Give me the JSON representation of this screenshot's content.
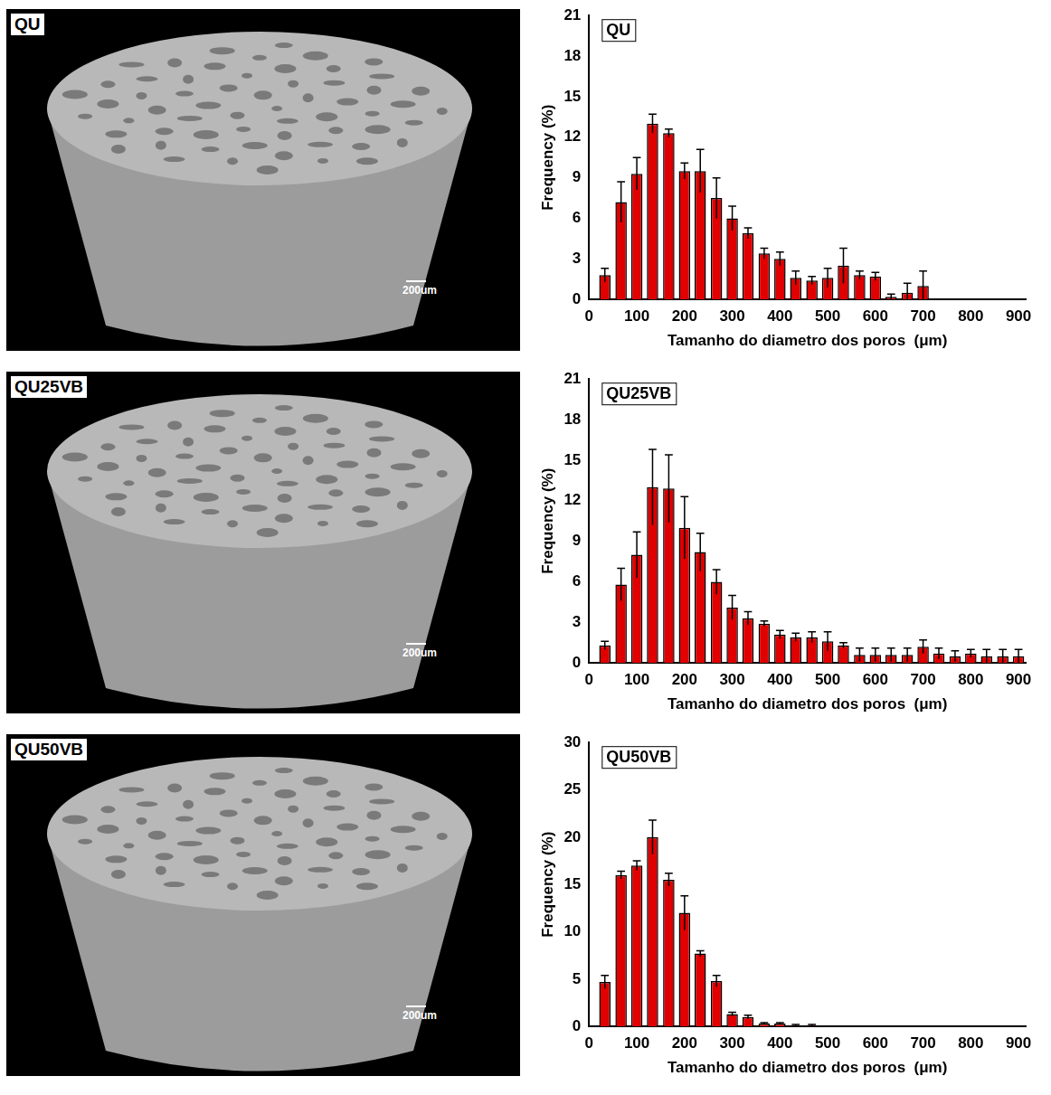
{
  "images": [
    {
      "label": "QU",
      "scale_bar": "200um"
    },
    {
      "label": "QU25VB",
      "scale_bar": "200um"
    },
    {
      "label": "QU50VB",
      "scale_bar": "200um"
    }
  ],
  "chart_data": [
    {
      "type": "bar",
      "title": "QU",
      "x_label": "Tamanho do diametro dos poros  (μm)",
      "y_label": "Frequency (%)",
      "x": [
        33,
        67,
        100,
        133,
        167,
        200,
        233,
        267,
        300,
        333,
        367,
        400,
        433,
        467,
        500,
        533,
        567,
        600,
        633,
        667,
        700
      ],
      "values": [
        1.8,
        7.2,
        9.3,
        13.0,
        12.3,
        9.5,
        9.5,
        7.5,
        6.0,
        4.9,
        3.4,
        3.0,
        1.6,
        1.4,
        1.6,
        2.5,
        1.8,
        1.7,
        0.2,
        0.5,
        1.0
      ],
      "errors": [
        0.5,
        1.5,
        1.2,
        0.7,
        0.3,
        0.6,
        1.6,
        1.5,
        0.9,
        0.4,
        0.4,
        0.5,
        0.5,
        0.3,
        0.7,
        1.3,
        0.3,
        0.3,
        0.2,
        0.7,
        1.1
      ],
      "color": "#e00000",
      "xlim": [
        0,
        915
      ],
      "xticks": [
        0,
        100,
        200,
        300,
        400,
        500,
        600,
        700,
        800,
        900
      ],
      "ylim": [
        0,
        21
      ],
      "yticks": [
        0,
        3,
        6,
        9,
        12,
        15,
        18,
        21
      ],
      "grid": false
    },
    {
      "type": "bar",
      "title": "QU25VB",
      "x_label": "Tamanho do diametro dos poros  (μm)",
      "y_label": "Frequency (%)",
      "x": [
        33,
        67,
        100,
        133,
        167,
        200,
        233,
        267,
        300,
        333,
        367,
        400,
        433,
        467,
        500,
        533,
        567,
        600,
        633,
        667,
        700,
        733,
        767,
        800,
        833,
        867,
        900
      ],
      "values": [
        1.3,
        5.8,
        8.0,
        13.0,
        12.9,
        10.0,
        8.2,
        6.0,
        4.1,
        3.3,
        2.9,
        2.1,
        1.9,
        1.9,
        1.6,
        1.3,
        0.6,
        0.6,
        0.6,
        0.6,
        1.2,
        0.7,
        0.5,
        0.7,
        0.5,
        0.5,
        0.5
      ],
      "errors": [
        0.3,
        1.2,
        1.7,
        2.8,
        2.5,
        2.3,
        1.4,
        0.9,
        0.9,
        0.5,
        0.2,
        0.3,
        0.3,
        0.4,
        0.7,
        0.2,
        0.5,
        0.5,
        0.5,
        0.5,
        0.5,
        0.4,
        0.4,
        0.3,
        0.5,
        0.5,
        0.5
      ],
      "color": "#e00000",
      "xlim": [
        0,
        915
      ],
      "xticks": [
        0,
        100,
        200,
        300,
        400,
        500,
        600,
        700,
        800,
        900
      ],
      "ylim": [
        0,
        21
      ],
      "yticks": [
        0,
        3,
        6,
        9,
        12,
        15,
        18,
        21
      ],
      "grid": false
    },
    {
      "type": "bar",
      "title": "QU50VB",
      "x_label": "Tamanho do diametro dos poros  (μm)",
      "y_label": "Frequency (%)",
      "x": [
        33,
        67,
        100,
        133,
        167,
        200,
        233,
        267,
        300,
        333,
        367,
        400,
        433,
        467
      ],
      "values": [
        4.7,
        16.0,
        17.0,
        20.0,
        15.5,
        12.0,
        7.7,
        4.8,
        1.3,
        1.0,
        0.3,
        0.3,
        0.1,
        0.1
      ],
      "errors": [
        0.7,
        0.4,
        0.5,
        1.8,
        0.7,
        1.8,
        0.3,
        0.6,
        0.2,
        0.2,
        0.1,
        0.1,
        0.1,
        0.1
      ],
      "color": "#e00000",
      "xlim": [
        0,
        915
      ],
      "xticks": [
        0,
        100,
        200,
        300,
        400,
        500,
        600,
        700,
        800,
        900
      ],
      "ylim": [
        0,
        30
      ],
      "yticks": [
        0,
        5,
        10,
        15,
        20,
        25,
        30
      ],
      "grid": false
    }
  ]
}
